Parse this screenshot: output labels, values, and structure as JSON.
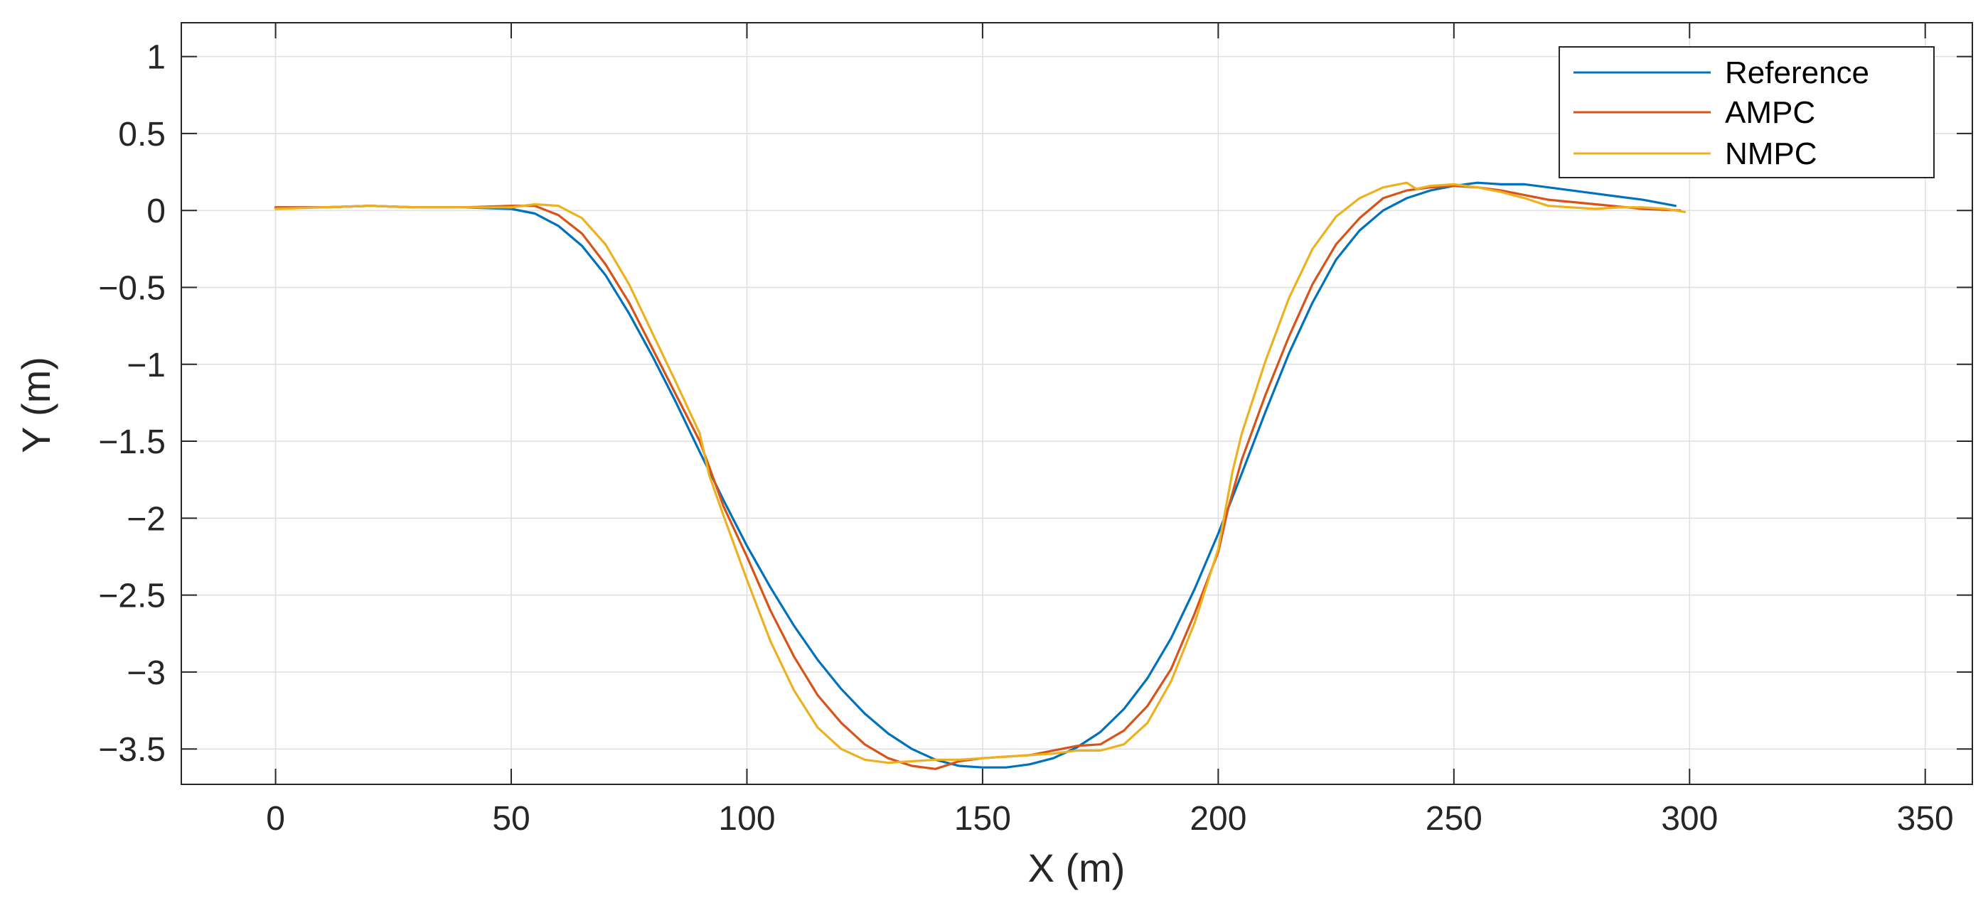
{
  "chart_data": {
    "type": "line",
    "xlabel": "X (m)",
    "ylabel": "Y (m)",
    "xlim": [
      -20,
      360
    ],
    "ylim": [
      -3.73,
      1.22
    ],
    "xticks": [
      0,
      50,
      100,
      150,
      200,
      250,
      300,
      350
    ],
    "xtick_labels": [
      "0",
      "50",
      "100",
      "150",
      "200",
      "250",
      "300",
      "350"
    ],
    "yticks": [
      1,
      0.5,
      0,
      -0.5,
      -1,
      -1.5,
      -2,
      -2.5,
      -3,
      -3.5
    ],
    "ytick_labels": [
      "1",
      "0.5",
      "0",
      "−0.5",
      "−1",
      "−1.5",
      "−2",
      "−2.5",
      "−3",
      "−3.5"
    ],
    "grid": true,
    "legend_position": "top-right",
    "series": [
      {
        "name": "Reference",
        "color": "#0072BD",
        "x": [
          0,
          10,
          20,
          30,
          40,
          50,
          55,
          60,
          65,
          70,
          75,
          80,
          85,
          90,
          95,
          100,
          105,
          110,
          115,
          120,
          125,
          130,
          135,
          140,
          145,
          150,
          155,
          160,
          165,
          170,
          175,
          180,
          185,
          190,
          195,
          200,
          205,
          210,
          215,
          220,
          225,
          230,
          235,
          240,
          245,
          250,
          255,
          260,
          265,
          270,
          280,
          290,
          297
        ],
        "y": [
          0.02,
          0.02,
          0.03,
          0.02,
          0.02,
          0.01,
          -0.02,
          -0.1,
          -0.23,
          -0.42,
          -0.67,
          -0.95,
          -1.25,
          -1.57,
          -1.88,
          -2.18,
          -2.45,
          -2.7,
          -2.92,
          -3.11,
          -3.27,
          -3.4,
          -3.5,
          -3.57,
          -3.61,
          -3.62,
          -3.62,
          -3.6,
          -3.56,
          -3.49,
          -3.39,
          -3.24,
          -3.04,
          -2.78,
          -2.46,
          -2.1,
          -1.71,
          -1.31,
          -0.93,
          -0.6,
          -0.32,
          -0.13,
          0.0,
          0.08,
          0.13,
          0.16,
          0.18,
          0.17,
          0.17,
          0.15,
          0.11,
          0.07,
          0.03
        ]
      },
      {
        "name": "AMPC",
        "color": "#D95319",
        "x": [
          0,
          10,
          20,
          30,
          40,
          50,
          55,
          60,
          65,
          70,
          75,
          80,
          85,
          90,
          93,
          95,
          100,
          105,
          110,
          115,
          120,
          125,
          130,
          135,
          140,
          145,
          150,
          155,
          160,
          165,
          170,
          175,
          180,
          185,
          190,
          195,
          200,
          202,
          205,
          210,
          215,
          220,
          225,
          230,
          235,
          240,
          245,
          250,
          255,
          260,
          265,
          270,
          280,
          290,
          298
        ],
        "y": [
          0.02,
          0.02,
          0.03,
          0.02,
          0.02,
          0.03,
          0.03,
          -0.03,
          -0.15,
          -0.35,
          -0.6,
          -0.9,
          -1.2,
          -1.5,
          -1.75,
          -1.92,
          -2.25,
          -2.6,
          -2.9,
          -3.15,
          -3.33,
          -3.47,
          -3.56,
          -3.61,
          -3.63,
          -3.58,
          -3.56,
          -3.55,
          -3.54,
          -3.51,
          -3.48,
          -3.47,
          -3.38,
          -3.22,
          -2.98,
          -2.62,
          -2.22,
          -1.95,
          -1.62,
          -1.2,
          -0.82,
          -0.48,
          -0.22,
          -0.05,
          0.08,
          0.13,
          0.15,
          0.16,
          0.15,
          0.13,
          0.1,
          0.07,
          0.04,
          0.01,
          0.0
        ]
      },
      {
        "name": "NMPC",
        "color": "#EDB120",
        "x": [
          0,
          10,
          20,
          30,
          40,
          50,
          55,
          60,
          65,
          70,
          75,
          80,
          85,
          90,
          92,
          95,
          100,
          105,
          110,
          115,
          120,
          125,
          130,
          135,
          140,
          145,
          150,
          155,
          160,
          165,
          170,
          175,
          180,
          185,
          190,
          195,
          200,
          203,
          205,
          210,
          215,
          220,
          225,
          230,
          235,
          240,
          242,
          245,
          250,
          255,
          260,
          265,
          270,
          275,
          280,
          285,
          290,
          295,
          299
        ],
        "y": [
          0.01,
          0.02,
          0.03,
          0.02,
          0.02,
          0.02,
          0.04,
          0.03,
          -0.05,
          -0.22,
          -0.48,
          -0.8,
          -1.12,
          -1.45,
          -1.72,
          -1.98,
          -2.4,
          -2.8,
          -3.12,
          -3.36,
          -3.5,
          -3.57,
          -3.59,
          -3.58,
          -3.57,
          -3.57,
          -3.56,
          -3.55,
          -3.54,
          -3.53,
          -3.51,
          -3.51,
          -3.47,
          -3.33,
          -3.06,
          -2.68,
          -2.2,
          -1.7,
          -1.45,
          -0.98,
          -0.57,
          -0.25,
          -0.04,
          0.08,
          0.15,
          0.18,
          0.14,
          0.16,
          0.17,
          0.15,
          0.12,
          0.08,
          0.03,
          0.02,
          0.01,
          0.02,
          0.02,
          0.01,
          -0.01
        ]
      }
    ]
  }
}
